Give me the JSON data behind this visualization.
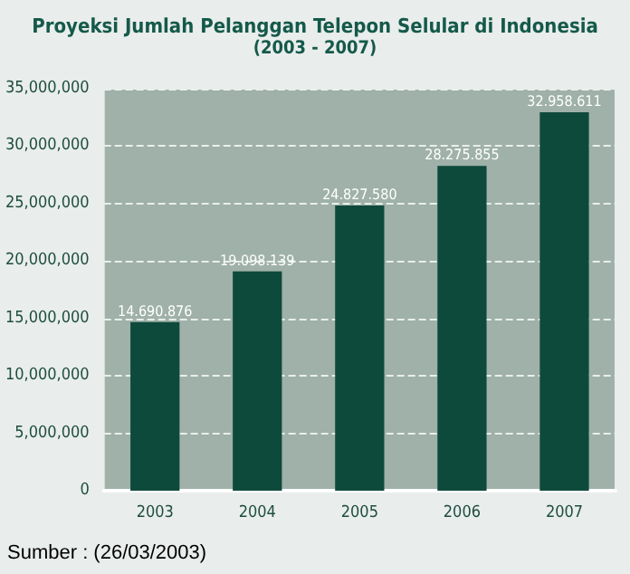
{
  "chart_data": {
    "type": "bar",
    "title": "Proyeksi Jumlah Pelanggan Telepon Selular di Indonesia",
    "subtitle": "(2003 - 2007)",
    "categories": [
      "2003",
      "2004",
      "2005",
      "2006",
      "2007"
    ],
    "values": [
      14690876,
      19098139,
      24827580,
      28275855,
      32958611
    ],
    "value_labels": [
      "14.690.876",
      "19.098.139",
      "24.827.580",
      "28.275.855",
      "32.958.611"
    ],
    "color": "#0e4a3b",
    "ylim": [
      0,
      35000000
    ],
    "yticks": [
      0,
      {
        "value": 5000000,
        "label": "5,000,000"
      },
      {
        "value": 10000000,
        "label": "10,000,000"
      },
      {
        "value": 15000000,
        "label": "15,000,000"
      },
      {
        "value": 20000000,
        "label": "20,000,000"
      },
      {
        "value": 25000000,
        "label": "25,000,000"
      },
      {
        "value": 30000000,
        "label": "30,000,000"
      },
      {
        "value": 35000000,
        "label": "35,000,000"
      }
    ],
    "grid": "y",
    "annotations": [
      "Sumber : (26/03/2003)"
    ]
  }
}
